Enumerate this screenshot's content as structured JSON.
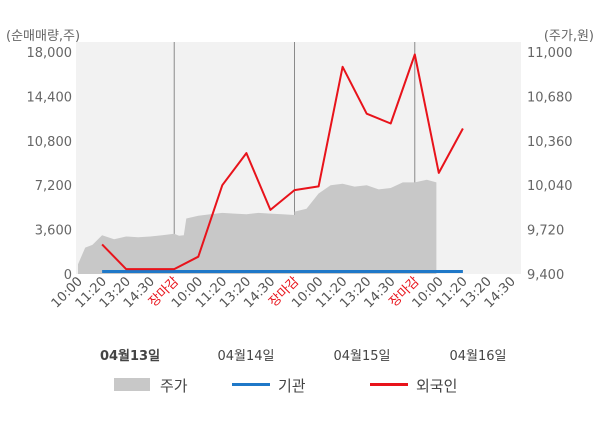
{
  "chart_data": {
    "type": "line",
    "y_left": {
      "unit_label": "(순매매량,주)",
      "ticks": [
        "18,000",
        "14,400",
        "10,800",
        "7,200",
        "3,600",
        "0"
      ],
      "range": [
        0,
        18000
      ]
    },
    "y_right": {
      "unit_label": "(주가,원)",
      "ticks": [
        "11,000",
        "10,680",
        "10,360",
        "10,040",
        "9,720",
        "9,400"
      ],
      "range": [
        9400,
        11000
      ]
    },
    "x_ticks": [
      {
        "label": "10:00",
        "red": false
      },
      {
        "label": "11:20",
        "red": false
      },
      {
        "label": "13:20",
        "red": false
      },
      {
        "label": "14:30",
        "red": false
      },
      {
        "label": "장마감",
        "red": true
      },
      {
        "label": "10:00",
        "red": false
      },
      {
        "label": "11:20",
        "red": false
      },
      {
        "label": "13:20",
        "red": false
      },
      {
        "label": "14:30",
        "red": false
      },
      {
        "label": "장마감",
        "red": true
      },
      {
        "label": "10:00",
        "red": false
      },
      {
        "label": "11:20",
        "red": false
      },
      {
        "label": "13:20",
        "red": false
      },
      {
        "label": "14:30",
        "red": false
      },
      {
        "label": "장마감",
        "red": true
      },
      {
        "label": "10:00",
        "red": false
      },
      {
        "label": "11:20",
        "red": false
      },
      {
        "label": "13:20",
        "red": false
      },
      {
        "label": "14:30",
        "red": false
      }
    ],
    "dates": [
      {
        "label": "04월13일",
        "bold": true
      },
      {
        "label": "04월14일",
        "bold": false
      },
      {
        "label": "04월15일",
        "bold": false
      },
      {
        "label": "04월16일",
        "bold": false
      }
    ],
    "series": [
      {
        "name": "주가",
        "kind": "area",
        "axis": "right",
        "color": "#c8c8c8",
        "points": [
          [
            0,
            9470
          ],
          [
            0.3,
            9590
          ],
          [
            0.6,
            9610
          ],
          [
            1.0,
            9680
          ],
          [
            1.5,
            9650
          ],
          [
            2.0,
            9670
          ],
          [
            2.5,
            9665
          ],
          [
            3.0,
            9670
          ],
          [
            3.5,
            9680
          ],
          [
            4.0,
            9690
          ],
          [
            4.2,
            9675
          ],
          [
            4.4,
            9680
          ],
          [
            4.5,
            9800
          ],
          [
            5.0,
            9820
          ],
          [
            5.5,
            9830
          ],
          [
            6.0,
            9840
          ],
          [
            6.5,
            9835
          ],
          [
            7.0,
            9830
          ],
          [
            7.5,
            9840
          ],
          [
            8.0,
            9835
          ],
          [
            8.5,
            9830
          ],
          [
            9.0,
            9825
          ],
          [
            9.0,
            9850
          ],
          [
            9.5,
            9870
          ],
          [
            10.0,
            9980
          ],
          [
            10.5,
            10040
          ],
          [
            11.0,
            10050
          ],
          [
            11.5,
            10030
          ],
          [
            12.0,
            10040
          ],
          [
            12.5,
            10010
          ],
          [
            13.0,
            10020
          ],
          [
            13.5,
            10060
          ],
          [
            14.0,
            10060
          ],
          [
            14.5,
            10080
          ],
          [
            14.9,
            10060
          ]
        ]
      },
      {
        "name": "기관",
        "kind": "line",
        "axis": "left",
        "color": "#1f78c8",
        "points": [
          [
            1,
            200
          ],
          [
            16,
            200
          ]
        ]
      },
      {
        "name": "외국인",
        "kind": "line",
        "axis": "left",
        "color": "#e8131b",
        "points": [
          [
            1,
            2400
          ],
          [
            2,
            400
          ],
          [
            3,
            400
          ],
          [
            4,
            400
          ],
          [
            5,
            1400
          ],
          [
            6,
            7200
          ],
          [
            7,
            9800
          ],
          [
            8,
            5200
          ],
          [
            9,
            6800
          ],
          [
            10,
            7100
          ],
          [
            11,
            16800
          ],
          [
            12,
            13000
          ],
          [
            13,
            12200
          ],
          [
            14,
            17800
          ],
          [
            15,
            8200
          ],
          [
            16,
            11800
          ]
        ]
      }
    ],
    "legend": [
      {
        "label": "주가",
        "color": "#c8c8c8",
        "kind": "area"
      },
      {
        "label": "기관",
        "color": "#1f78c8",
        "kind": "line"
      },
      {
        "label": "외국인",
        "color": "#e8131b",
        "kind": "line"
      }
    ]
  }
}
